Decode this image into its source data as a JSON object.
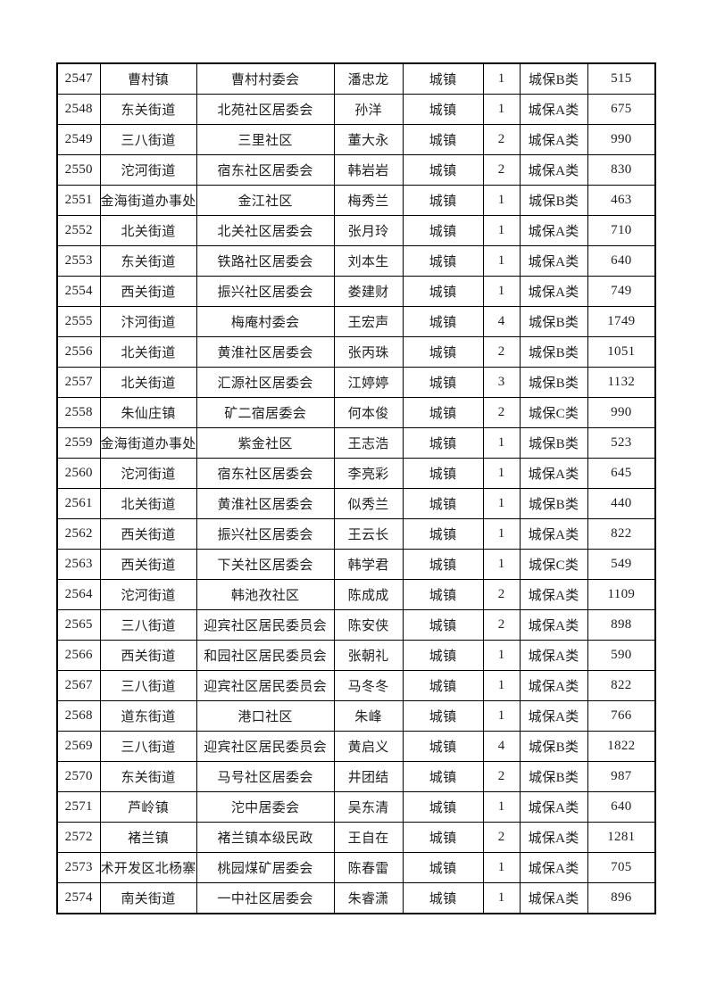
{
  "colors": {
    "background": "#ffffff",
    "border": "#000000",
    "text": "#1f1f1f"
  },
  "table": {
    "rows": [
      [
        "2547",
        "曹村镇",
        "曹村村委会",
        "潘忠龙",
        "城镇",
        "1",
        "城保B类",
        "515"
      ],
      [
        "2548",
        "东关街道",
        "北苑社区居委会",
        "孙洋",
        "城镇",
        "1",
        "城保A类",
        "675"
      ],
      [
        "2549",
        "三八街道",
        "三里社区",
        "董大永",
        "城镇",
        "2",
        "城保A类",
        "990"
      ],
      [
        "2550",
        "沱河街道",
        "宿东社区居委会",
        "韩岩岩",
        "城镇",
        "2",
        "城保A类",
        "830"
      ],
      [
        "2551",
        "金海街道办事处",
        "金江社区",
        "梅秀兰",
        "城镇",
        "1",
        "城保B类",
        "463"
      ],
      [
        "2552",
        "北关街道",
        "北关社区居委会",
        "张月玲",
        "城镇",
        "1",
        "城保A类",
        "710"
      ],
      [
        "2553",
        "东关街道",
        "铁路社区居委会",
        "刘本生",
        "城镇",
        "1",
        "城保A类",
        "640"
      ],
      [
        "2554",
        "西关街道",
        "振兴社区居委会",
        "娄建财",
        "城镇",
        "1",
        "城保A类",
        "749"
      ],
      [
        "2555",
        "汴河街道",
        "梅庵村委会",
        "王宏声",
        "城镇",
        "4",
        "城保B类",
        "1749"
      ],
      [
        "2556",
        "北关街道",
        "黄淮社区居委会",
        "张丙珠",
        "城镇",
        "2",
        "城保B类",
        "1051"
      ],
      [
        "2557",
        "北关街道",
        "汇源社区居委会",
        "江婷婷",
        "城镇",
        "3",
        "城保B类",
        "1132"
      ],
      [
        "2558",
        "朱仙庄镇",
        "矿二宿居委会",
        "何本俊",
        "城镇",
        "2",
        "城保C类",
        "990"
      ],
      [
        "2559",
        "金海街道办事处",
        "紫金社区",
        "王志浩",
        "城镇",
        "1",
        "城保B类",
        "523"
      ],
      [
        "2560",
        "沱河街道",
        "宿东社区居委会",
        "李亮彩",
        "城镇",
        "1",
        "城保A类",
        "645"
      ],
      [
        "2561",
        "北关街道",
        "黄淮社区居委会",
        "似秀兰",
        "城镇",
        "1",
        "城保B类",
        "440"
      ],
      [
        "2562",
        "西关街道",
        "振兴社区居委会",
        "王云长",
        "城镇",
        "1",
        "城保A类",
        "822"
      ],
      [
        "2563",
        "西关街道",
        "下关社区居委会",
        "韩学君",
        "城镇",
        "1",
        "城保C类",
        "549"
      ],
      [
        "2564",
        "沱河街道",
        "韩池孜社区",
        "陈成成",
        "城镇",
        "2",
        "城保A类",
        "1109"
      ],
      [
        "2565",
        "三八街道",
        "迎宾社区居民委员会",
        "陈安侠",
        "城镇",
        "2",
        "城保A类",
        "898"
      ],
      [
        "2566",
        "西关街道",
        "和园社区居民委员会",
        "张朝礼",
        "城镇",
        "1",
        "城保A类",
        "590"
      ],
      [
        "2567",
        "三八街道",
        "迎宾社区居民委员会",
        "马冬冬",
        "城镇",
        "1",
        "城保A类",
        "822"
      ],
      [
        "2568",
        "道东街道",
        "港口社区",
        "朱峰",
        "城镇",
        "1",
        "城保A类",
        "766"
      ],
      [
        "2569",
        "三八街道",
        "迎宾社区居民委员会",
        "黄启义",
        "城镇",
        "4",
        "城保B类",
        "1822"
      ],
      [
        "2570",
        "东关街道",
        "马号社区居委会",
        "井团结",
        "城镇",
        "2",
        "城保B类",
        "987"
      ],
      [
        "2571",
        "芦岭镇",
        "沱中居委会",
        "吴东清",
        "城镇",
        "1",
        "城保A类",
        "640"
      ],
      [
        "2572",
        "褚兰镇",
        "褚兰镇本级民政",
        "王自在",
        "城镇",
        "2",
        "城保A类",
        "1281"
      ],
      [
        "2573",
        "术开发区北杨寨",
        "桃园煤矿居委会",
        "陈春雷",
        "城镇",
        "1",
        "城保A类",
        "705"
      ],
      [
        "2574",
        "南关街道",
        "一中社区居委会",
        "朱睿潇",
        "城镇",
        "1",
        "城保A类",
        "896"
      ]
    ]
  }
}
